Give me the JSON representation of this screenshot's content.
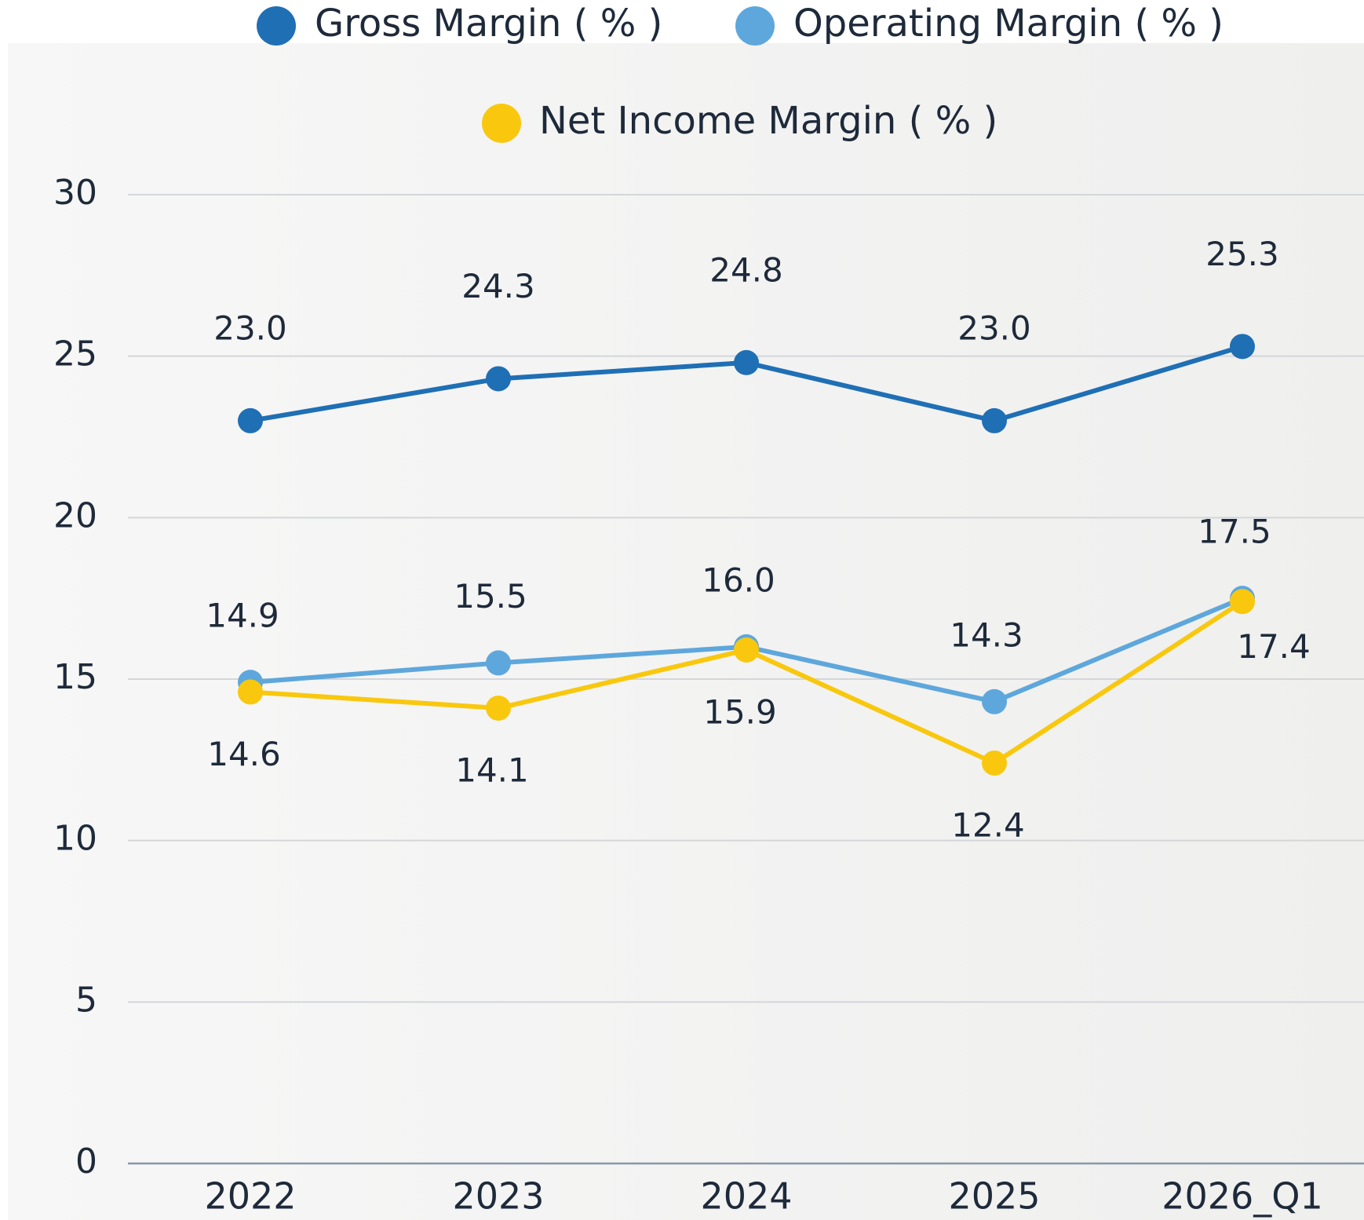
{
  "chart_data": {
    "type": "line",
    "categories": [
      "2022",
      "2023",
      "2024",
      "2025",
      "2026_Q1"
    ],
    "series": [
      {
        "name": "Gross Margin ( % )",
        "color": "#1f6fb5",
        "values": [
          23.0,
          24.3,
          24.8,
          23.0,
          25.3
        ],
        "value_labels": [
          "23.0",
          "24.3",
          "24.8",
          "23.0",
          "25.3"
        ]
      },
      {
        "name": "Operating Margin ( % )",
        "color": "#5ea7dc",
        "values": [
          14.9,
          15.5,
          16.0,
          14.3,
          17.5
        ],
        "value_labels": [
          "14.9",
          "15.5",
          "16.0",
          "14.3",
          "17.5"
        ]
      },
      {
        "name": "Net Income Margin ( % )",
        "color": "#f9c80e",
        "values": [
          14.6,
          14.1,
          15.9,
          12.4,
          17.4
        ],
        "value_labels": [
          "14.6",
          "14.1",
          "15.9",
          "12.4",
          "17.4"
        ]
      }
    ],
    "ylim": [
      0,
      30
    ],
    "yticks": [
      0,
      5,
      10,
      15,
      20,
      25,
      30
    ],
    "grid": true,
    "legend": "top"
  }
}
